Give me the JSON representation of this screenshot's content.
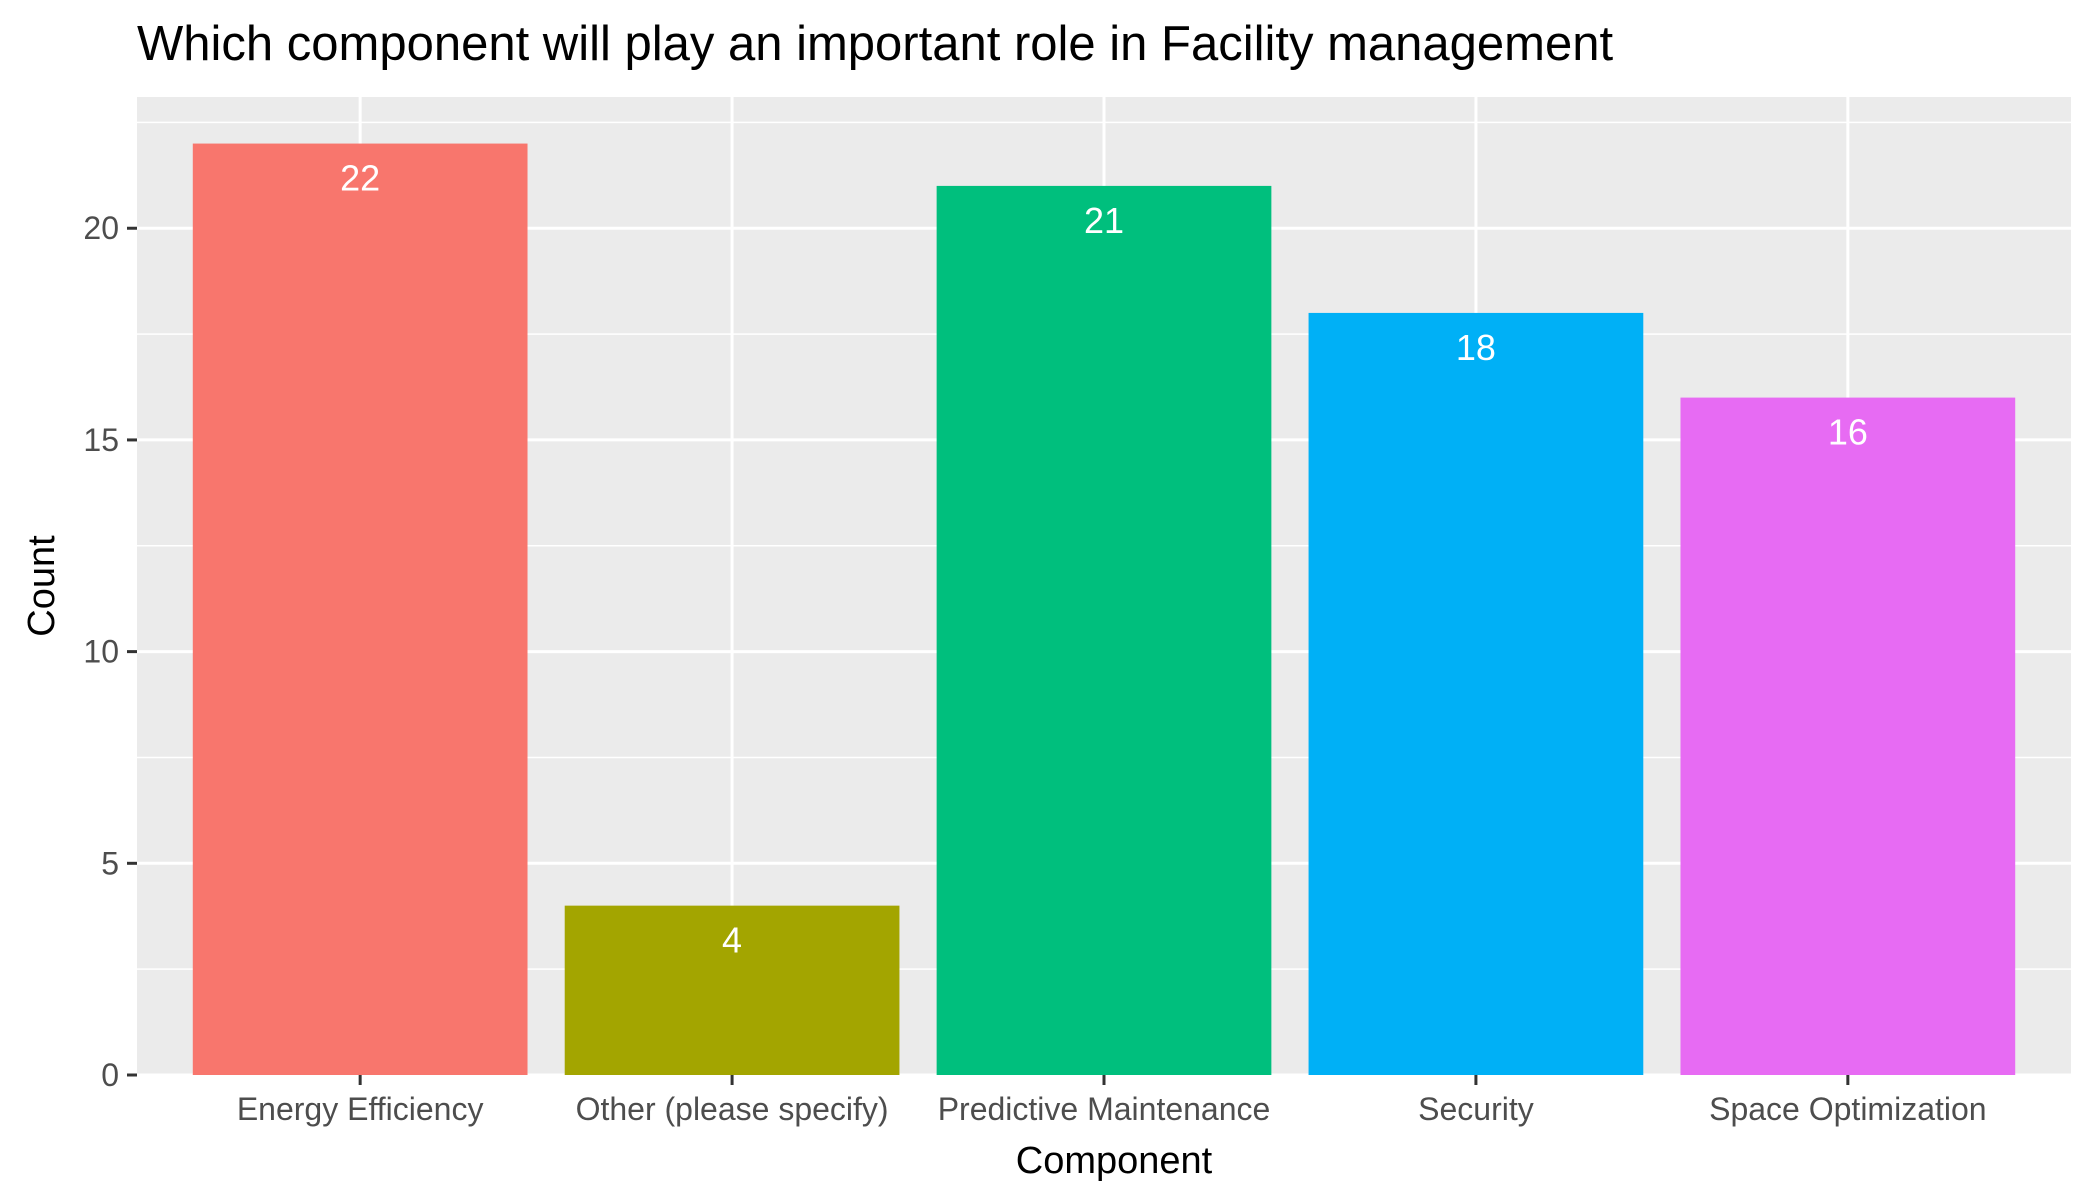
{
  "chart_data": {
    "type": "bar",
    "title": "Which component will play an important role in Facility management",
    "xlabel": "Component",
    "ylabel": "Count",
    "categories": [
      "Energy Efficiency",
      "Other (please specify)",
      "Predictive Maintenance",
      "Security",
      "Space Optimization"
    ],
    "values": [
      22,
      4,
      21,
      18,
      16
    ],
    "colors": [
      "#F8766D",
      "#A3A500",
      "#00BF7D",
      "#00B0F6",
      "#E76BF3"
    ],
    "ylim": [
      0,
      23.1
    ],
    "yticks": [
      0,
      5,
      10,
      15,
      20
    ],
    "grid": true,
    "legend": "none",
    "panel_background": "#EBEBEB",
    "grid_color": "#FFFFFF"
  }
}
